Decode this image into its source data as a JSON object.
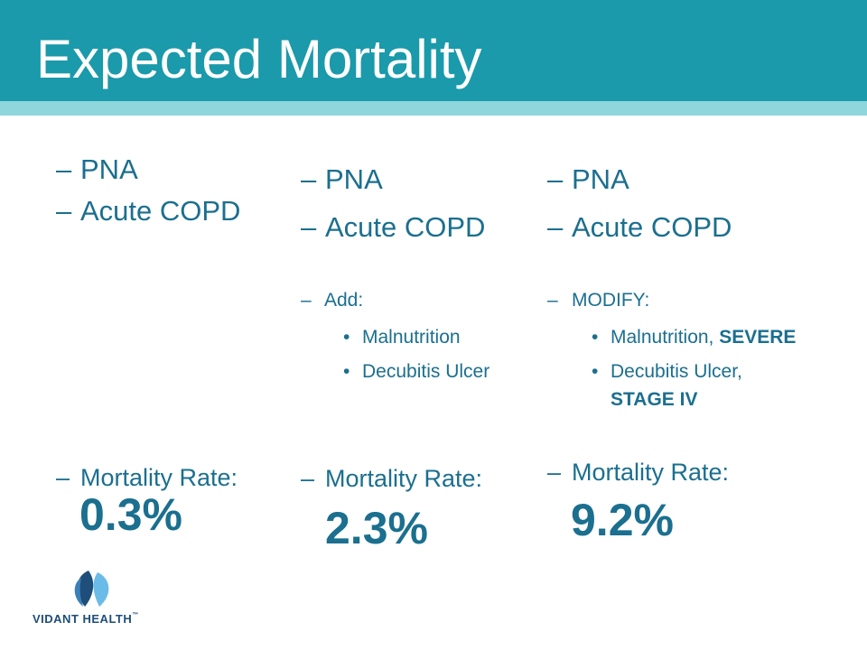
{
  "slide": {
    "title": "Expected Mortality"
  },
  "dash": "–",
  "bullet": "•",
  "columns": [
    {
      "items": [
        "PNA",
        "Acute COPD"
      ],
      "rate_label": "Mortality Rate:",
      "rate_value": "0.3%"
    },
    {
      "items": [
        "PNA",
        "Acute COPD"
      ],
      "sub_heading": "Add:",
      "sub_items": [
        "Malnutrition",
        "Decubitis Ulcer"
      ],
      "rate_label": "Mortality Rate:",
      "rate_value": "2.3%"
    },
    {
      "items": [
        "PNA",
        "Acute COPD"
      ],
      "sub_heading": "MODIFY:",
      "sub_items": [
        {
          "text": "Malnutrition, ",
          "emphasis": "SEVERE"
        },
        {
          "text": "Decubitis Ulcer,",
          "emphasis": "STAGE IV"
        }
      ],
      "rate_label": "Mortality Rate:",
      "rate_value": "9.2%"
    }
  ],
  "logo": {
    "name": "VIDANT HEALTH",
    "tm": "™"
  },
  "colors": {
    "header": "#1a9aaa",
    "stripe": "#8fd6dc",
    "text": "#1b6f8f",
    "logo_dark": "#1e4e79",
    "logo_light": "#6bbbe8"
  }
}
